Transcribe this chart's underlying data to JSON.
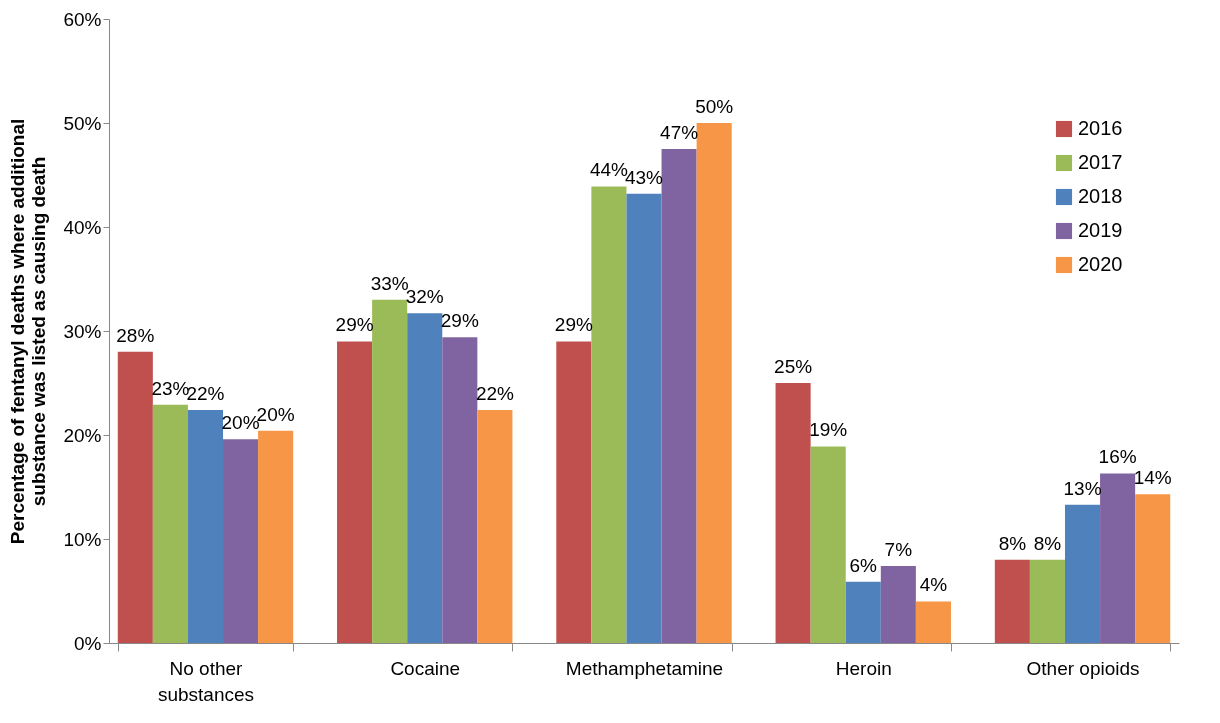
{
  "chart_data": {
    "type": "bar",
    "ylabel": "Percentage of fentanyl deaths where additional substance was listed as causing death",
    "categories": [
      "No other substances",
      "Cocaine",
      "Methamphetamine",
      "Heroin",
      "Other opioids"
    ],
    "series": [
      {
        "name": "2016",
        "color": "#c0504d",
        "values": [
          28,
          29,
          29,
          25,
          8
        ],
        "value_labels": [
          "28%",
          "29%",
          "29%",
          "25%",
          "8%"
        ]
      },
      {
        "name": "2017",
        "color": "#9bbb59",
        "values": [
          22.9,
          33,
          43.9,
          18.9,
          8
        ],
        "value_labels": [
          "23%",
          "33%",
          "44%",
          "19%",
          "8%"
        ]
      },
      {
        "name": "2018",
        "color": "#4f81bd",
        "values": [
          22.4,
          31.7,
          43.2,
          5.9,
          13.3
        ],
        "value_labels": [
          "22%",
          "32%",
          "43%",
          "6%",
          "13%"
        ]
      },
      {
        "name": "2019",
        "color": "#8064a2",
        "values": [
          19.6,
          29.4,
          47.5,
          7.4,
          16.3
        ],
        "value_labels": [
          "20%",
          "29%",
          "47%",
          "7%",
          "16%"
        ]
      },
      {
        "name": "2020",
        "color": "#f79646",
        "values": [
          20.4,
          22.4,
          50,
          4,
          14.3
        ],
        "value_labels": [
          "20%",
          "22%",
          "50%",
          "4%",
          "14%"
        ]
      }
    ],
    "ylim": [
      0,
      60
    ],
    "yticks": [
      {
        "value": 0,
        "label": "0%"
      },
      {
        "value": 10,
        "label": "10%"
      },
      {
        "value": 20,
        "label": "20%"
      },
      {
        "value": 30,
        "label": "30%"
      },
      {
        "value": 40,
        "label": "40%"
      },
      {
        "value": 50,
        "label": "50%"
      },
      {
        "value": 60,
        "label": "60%"
      }
    ],
    "grid": false,
    "legend": "top right"
  }
}
